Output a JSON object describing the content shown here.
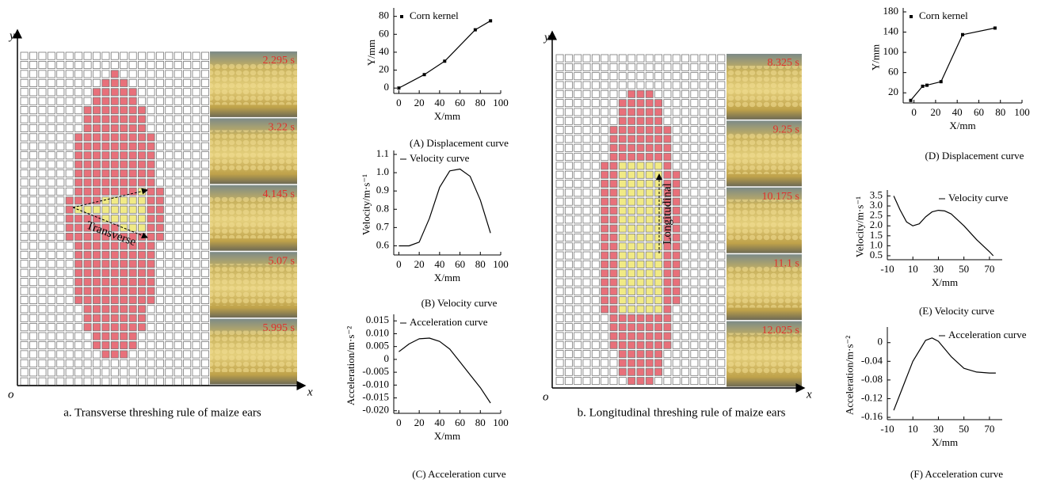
{
  "panels": [
    {
      "caption": "a. Transverse threshing rule of maize ears",
      "direction_label": "Transverse",
      "timestamps": [
        "2.295 s",
        "3.22 s",
        "4.145 s",
        "5.07 s",
        "5.995 s"
      ],
      "axis_y": "y",
      "axis_origin": "o",
      "axis_x": "x"
    },
    {
      "caption": "b. Longitudinal threshing rule of maize ears",
      "direction_label": "Longitudinal",
      "timestamps": [
        "8.325 s",
        "9.25 s",
        "10.175 s",
        "11.1 s",
        "12.025 s"
      ],
      "axis_y": "y",
      "axis_origin": "o",
      "axis_x": "x"
    }
  ],
  "chart_data": [
    {
      "type": "line",
      "caption": "(A) Displacement curve",
      "x_label": "X/mm",
      "y_label": "Y/mm",
      "markers": true,
      "legend": "upper left",
      "x": [
        0,
        25,
        45,
        75,
        90
      ],
      "series": [
        {
          "name": "Corn kernel",
          "color": "#000000",
          "values": [
            0,
            15,
            30,
            65,
            75
          ]
        }
      ],
      "xlim": [
        -5,
        100
      ],
      "ylim": [
        -6,
        85
      ],
      "xticks": [
        0,
        20,
        40,
        60,
        80,
        100
      ],
      "yticks": [
        0,
        20,
        40,
        60,
        80
      ]
    },
    {
      "type": "line",
      "caption": "(B) Velocity curve",
      "x_label": "X/mm",
      "y_label": "Velocity/m·s⁻¹",
      "markers": false,
      "legend": "upper left",
      "x": [
        0,
        10,
        20,
        30,
        40,
        50,
        60,
        70,
        80,
        90
      ],
      "series": [
        {
          "name": "Velocity curve",
          "color": "#000000",
          "values": [
            0.6,
            0.6,
            0.62,
            0.75,
            0.92,
            1.01,
            1.02,
            0.98,
            0.85,
            0.67
          ]
        }
      ],
      "xlim": [
        -5,
        100
      ],
      "ylim": [
        0.55,
        1.1
      ],
      "xticks": [
        0,
        20,
        40,
        60,
        80,
        100
      ],
      "yticks": [
        0.6,
        0.7,
        0.8,
        0.9,
        {
          "value": 1,
          "label": "1.0"
        },
        1.1
      ]
    },
    {
      "type": "line",
      "caption": "(C) Acceleration curve",
      "x_label": "X/mm",
      "y_label": "Acceleration/m·s⁻²",
      "markers": false,
      "legend": "upper left",
      "x": [
        0,
        10,
        20,
        30,
        40,
        50,
        60,
        70,
        80,
        90
      ],
      "series": [
        {
          "name": "Acceleration curve",
          "color": "#000000",
          "values": [
            0.003,
            0.006,
            0.008,
            0.0083,
            0.007,
            0.004,
            -0.001,
            -0.006,
            -0.011,
            -0.017
          ]
        }
      ],
      "xlim": [
        -5,
        100
      ],
      "ylim": [
        -0.021,
        0.016
      ],
      "xticks": [
        0,
        20,
        40,
        60,
        80,
        100
      ],
      "yticks": [
        0.015,
        {
          "value": 0.01,
          "label": "0.010"
        },
        0.005,
        0,
        -0.005,
        {
          "value": -0.01,
          "label": "-0.010"
        },
        -0.015,
        {
          "value": -0.02,
          "label": "-0.020"
        }
      ]
    },
    {
      "type": "line",
      "caption": "(D) Displacement curve",
      "x_label": "X/mm",
      "y_label": "Y/mm",
      "markers": true,
      "legend": "upper left",
      "x": [
        -3,
        8,
        12,
        25,
        45,
        75
      ],
      "series": [
        {
          "name": "Corn kernel",
          "color": "#000000",
          "values": [
            5,
            33,
            35,
            42,
            135,
            148
          ]
        }
      ],
      "xlim": [
        -10,
        100
      ],
      "ylim": [
        0,
        180
      ],
      "xticks": [
        0,
        20,
        40,
        60,
        80,
        100
      ],
      "yticks": [
        20,
        60,
        100,
        140,
        180
      ]
    },
    {
      "type": "line",
      "caption": "(E) Velocity curve",
      "x_label": "X/mm",
      "y_label": "Velocity/m·s⁻¹",
      "markers": false,
      "legend": "upper right",
      "x": [
        -5,
        0,
        5,
        10,
        15,
        20,
        25,
        30,
        35,
        40,
        50,
        60,
        70,
        73
      ],
      "series": [
        {
          "name": "Velocity curve",
          "color": "#000000",
          "values": [
            3.5,
            2.8,
            2.2,
            2.0,
            2.1,
            2.45,
            2.7,
            2.78,
            2.75,
            2.6,
            2.0,
            1.3,
            0.7,
            0.5
          ]
        }
      ],
      "xlim": [
        -10,
        80
      ],
      "ylim": [
        0.3,
        3.6
      ],
      "xticks": [
        -10,
        10,
        30,
        50,
        70
      ],
      "yticks": [
        0.5,
        {
          "value": 1,
          "label": "1.0"
        },
        1.5,
        {
          "value": 2,
          "label": "2.0"
        },
        2.5,
        {
          "value": 3,
          "label": "3.0"
        },
        3.5
      ]
    },
    {
      "type": "line",
      "caption": "(F) Acceleration curve",
      "x_label": "X/mm",
      "y_label": "Acceleration/m·s⁻²",
      "markers": false,
      "legend": "upper right",
      "x": [
        -5,
        0,
        10,
        20,
        25,
        30,
        40,
        50,
        60,
        70,
        75
      ],
      "series": [
        {
          "name": "Acceleration curve",
          "color": "#000000",
          "values": [
            -0.145,
            -0.11,
            -0.04,
            0.005,
            0.01,
            0.003,
            -0.03,
            -0.055,
            -0.063,
            -0.065,
            -0.065
          ]
        }
      ],
      "xlim": [
        -10,
        80
      ],
      "ylim": [
        -0.165,
        0.025
      ],
      "xticks": [
        -10,
        10,
        30,
        50,
        70
      ],
      "yticks": [
        0,
        -0.04,
        -0.08,
        -0.12,
        -0.16
      ]
    }
  ]
}
